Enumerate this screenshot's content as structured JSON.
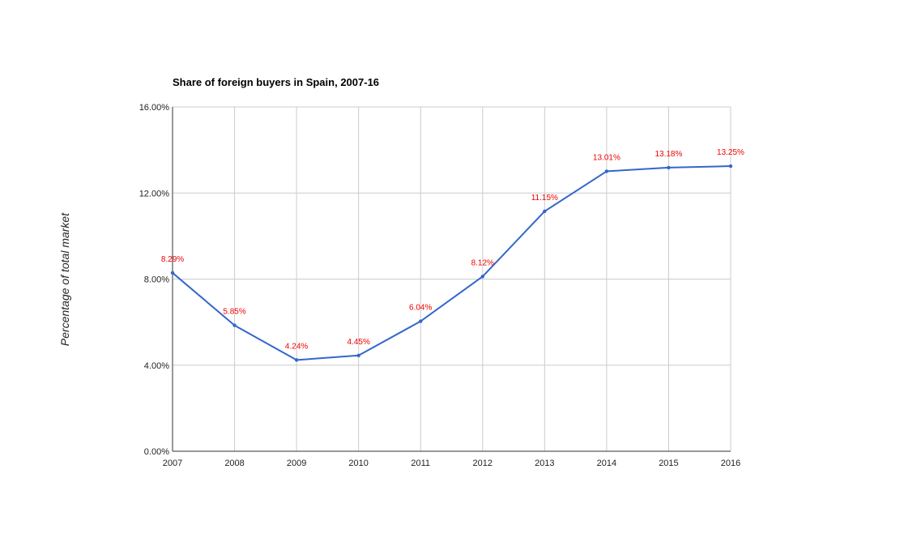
{
  "chart_data": {
    "type": "line",
    "title": "Share of foreign buyers in Spain, 2007-16",
    "xlabel": "",
    "ylabel": "Percentage of total market",
    "categories": [
      "2007",
      "2008",
      "2009",
      "2010",
      "2011",
      "2012",
      "2013",
      "2014",
      "2015",
      "2016"
    ],
    "series": [
      {
        "values": [
          8.29,
          5.85,
          4.24,
          4.45,
          6.04,
          8.12,
          11.15,
          13.01,
          13.18,
          13.25
        ],
        "data_labels": [
          "8.29%",
          "5.85%",
          "4.24%",
          "4.45%",
          "6.04%",
          "8.12%",
          "11.15%",
          "13.01%",
          "13.18%",
          "13.25%"
        ]
      }
    ],
    "y_ticks": [
      0,
      4,
      8,
      12,
      16
    ],
    "y_tick_labels": [
      "0.00%",
      "4.00%",
      "8.00%",
      "12.00%",
      "16.00%"
    ],
    "ylim": [
      0,
      16
    ],
    "grid": true,
    "legend": "none",
    "colors": {
      "line": "#3366cc",
      "data_label": "#ee0000",
      "grid": "#cccccc",
      "axis": "#333333"
    }
  }
}
